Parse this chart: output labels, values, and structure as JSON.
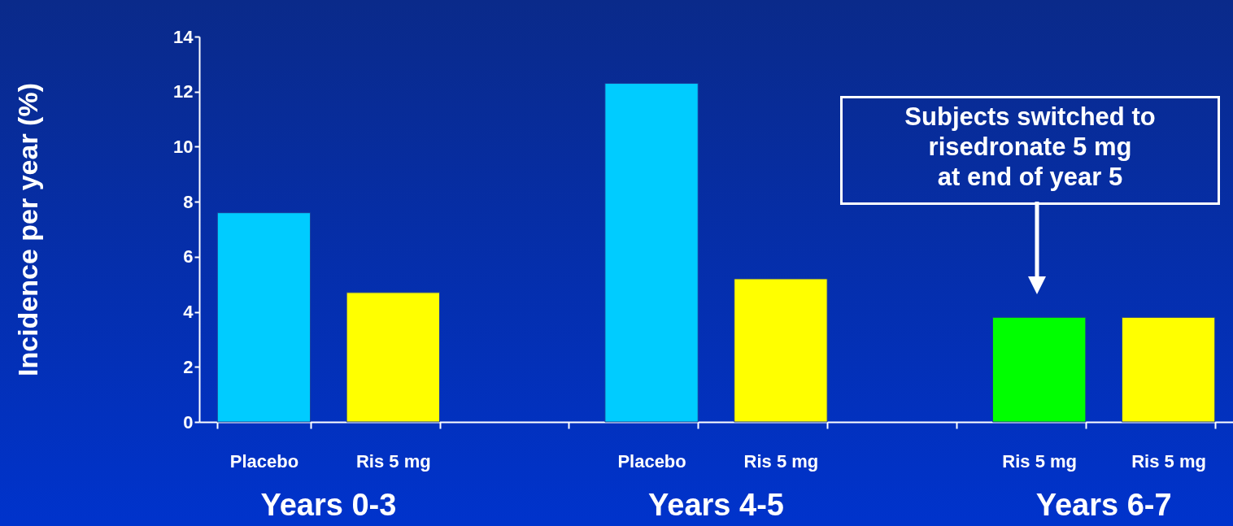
{
  "chart_data": {
    "type": "bar",
    "ylabel": "Incidence per year (%)",
    "categories": [
      "Placebo",
      "Ris 5 mg",
      null,
      "Placebo",
      "Ris 5 mg",
      null,
      "Ris 5 mg",
      "Ris 5 mg"
    ],
    "values": [
      7.6,
      4.7,
      null,
      12.3,
      5.2,
      null,
      3.8,
      3.8
    ],
    "colors": [
      "#00ccff",
      "#ffff00",
      null,
      "#00ccff",
      "#ffff00",
      null,
      "#00ff00",
      "#ffff00"
    ],
    "ylim": [
      0,
      14
    ],
    "yticks": [
      0,
      2,
      4,
      6,
      8,
      10,
      12,
      14
    ],
    "grid": false,
    "annotations": [
      "Years 0-3",
      "Years 4-5",
      "Years 6-7",
      "Subjects switched to\nrisedronate 5 mg\nat end of year 5"
    ]
  }
}
